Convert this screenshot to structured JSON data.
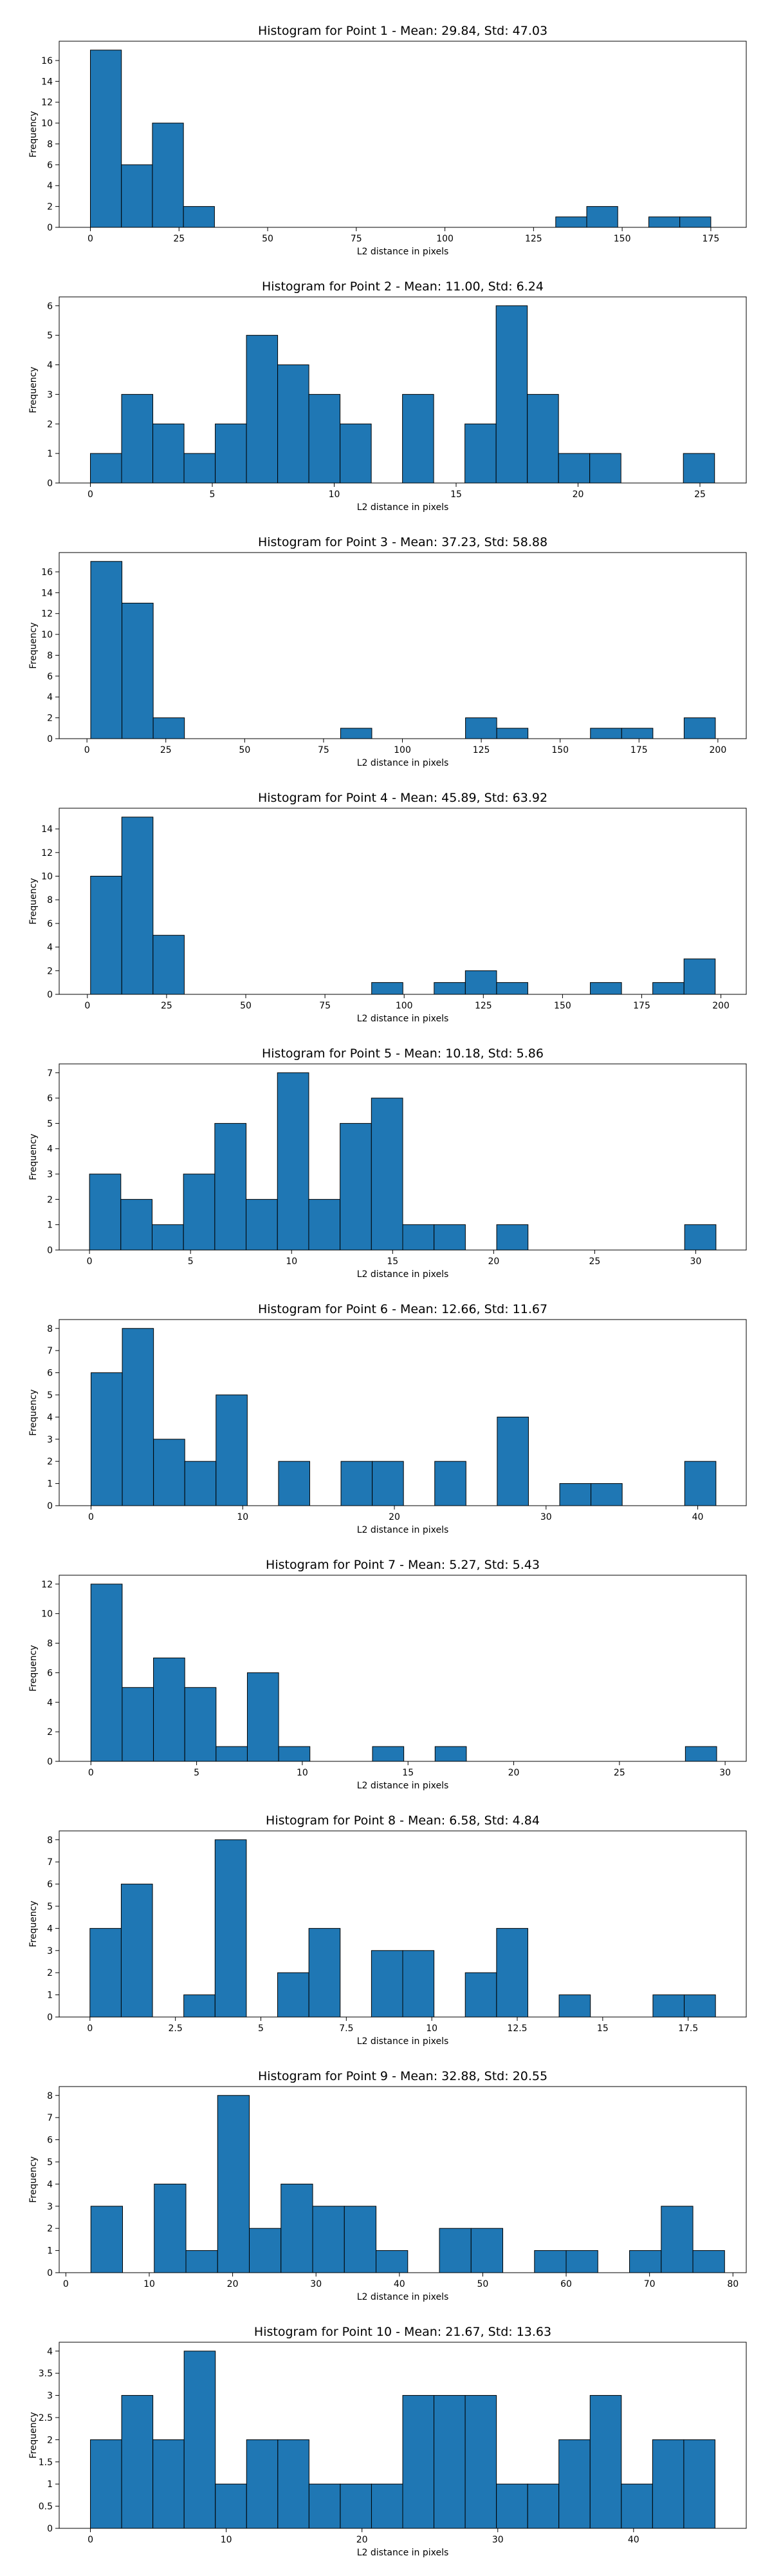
{
  "chart_data": [
    {
      "type": "bar",
      "title": "Histogram for Point 1 - Mean: 29.84, Std: 47.03",
      "xlabel": "L2 distance in pixels",
      "ylabel": "Frequency",
      "xlim": [
        -8.8,
        185
      ],
      "ylim": [
        0,
        17.85
      ],
      "xticks": [
        0,
        25,
        50,
        75,
        100,
        125,
        150,
        175
      ],
      "yticks": [
        0,
        2,
        4,
        6,
        8,
        10,
        12,
        14,
        16
      ],
      "bin_start": 0,
      "bin_width": 8.75,
      "counts": [
        17,
        6,
        10,
        2,
        0,
        0,
        0,
        0,
        0,
        0,
        0,
        0,
        0,
        0,
        0,
        1,
        2,
        0,
        1,
        1
      ]
    },
    {
      "type": "bar",
      "title": "Histogram for Point 2 - Mean: 11.00, Std: 6.24",
      "xlabel": "L2 distance in pixels",
      "ylabel": "Frequency",
      "xlim": [
        -1.28,
        26.9
      ],
      "ylim": [
        0,
        6.3
      ],
      "xticks": [
        0,
        5,
        10,
        15,
        20,
        25
      ],
      "yticks": [
        0,
        1,
        2,
        3,
        4,
        5,
        6
      ],
      "bin_start": 0,
      "bin_width": 1.28,
      "counts": [
        1,
        3,
        2,
        1,
        2,
        5,
        4,
        3,
        2,
        0,
        3,
        0,
        2,
        6,
        3,
        1,
        1,
        0,
        0,
        1
      ]
    },
    {
      "type": "bar",
      "title": "Histogram for Point 3 - Mean: 37.23, Std: 58.88",
      "xlabel": "L2 distance in pixels",
      "ylabel": "Frequency",
      "xlim": [
        -8.8,
        209
      ],
      "ylim": [
        0,
        17.85
      ],
      "xticks": [
        0,
        25,
        50,
        75,
        100,
        125,
        150,
        175,
        200
      ],
      "yticks": [
        0,
        2,
        4,
        6,
        8,
        10,
        12,
        14,
        16
      ],
      "bin_start": 1.2,
      "bin_width": 9.9,
      "counts": [
        17,
        13,
        2,
        0,
        0,
        0,
        0,
        0,
        1,
        0,
        0,
        0,
        2,
        1,
        0,
        0,
        1,
        1,
        0,
        2
      ]
    },
    {
      "type": "bar",
      "title": "Histogram for Point 4 - Mean: 45.89, Std: 63.92",
      "xlabel": "L2 distance in pixels",
      "ylabel": "Frequency",
      "xlim": [
        -8.9,
        208
      ],
      "ylim": [
        0,
        15.75
      ],
      "xticks": [
        0,
        25,
        50,
        75,
        100,
        125,
        150,
        175,
        200
      ],
      "yticks": [
        0,
        2,
        4,
        6,
        8,
        10,
        12,
        14
      ],
      "bin_start": 1.0,
      "bin_width": 9.86,
      "counts": [
        10,
        15,
        5,
        0,
        0,
        0,
        0,
        0,
        0,
        1,
        0,
        1,
        2,
        1,
        0,
        0,
        1,
        0,
        1,
        3
      ]
    },
    {
      "type": "bar",
      "title": "Histogram for Point 5 - Mean: 10.18, Std: 5.86",
      "xlabel": "L2 distance in pixels",
      "ylabel": "Frequency",
      "xlim": [
        -1.5,
        32.5
      ],
      "ylim": [
        0,
        7.35
      ],
      "xticks": [
        0,
        5,
        10,
        15,
        20,
        25,
        30
      ],
      "yticks": [
        0,
        1,
        2,
        3,
        4,
        5,
        6,
        7
      ],
      "bin_start": 0,
      "bin_width": 1.55,
      "counts": [
        3,
        2,
        1,
        3,
        5,
        2,
        7,
        2,
        5,
        6,
        1,
        1,
        0,
        1,
        0,
        0,
        0,
        0,
        0,
        1
      ]
    },
    {
      "type": "bar",
      "title": "Histogram for Point 6 - Mean: 12.66, Std: 11.67",
      "xlabel": "L2 distance in pixels",
      "ylabel": "Frequency",
      "xlim": [
        -2.1,
        43.2
      ],
      "ylim": [
        0,
        8.4
      ],
      "xticks": [
        0,
        10,
        20,
        30,
        40
      ],
      "yticks": [
        0,
        1,
        2,
        3,
        4,
        5,
        6,
        7,
        8
      ],
      "bin_start": 0,
      "bin_width": 2.06,
      "counts": [
        6,
        8,
        3,
        2,
        5,
        0,
        2,
        0,
        2,
        2,
        0,
        2,
        0,
        4,
        0,
        1,
        1,
        0,
        0,
        2
      ]
    },
    {
      "type": "bar",
      "title": "Histogram for Point 7 - Mean: 5.27, Std: 5.43",
      "xlabel": "L2 distance in pixels",
      "ylabel": "Frequency",
      "xlim": [
        -1.5,
        31.0
      ],
      "ylim": [
        0,
        12.6
      ],
      "xticks": [
        0,
        5,
        10,
        15,
        20,
        25,
        30
      ],
      "yticks": [
        0,
        2,
        4,
        6,
        8,
        10,
        12
      ],
      "bin_start": 0,
      "bin_width": 1.48,
      "counts": [
        12,
        5,
        7,
        5,
        1,
        6,
        1,
        0,
        0,
        1,
        0,
        1,
        0,
        0,
        0,
        0,
        0,
        0,
        0,
        1
      ]
    },
    {
      "type": "bar",
      "title": "Histogram for Point 8 - Mean: 6.58, Std: 4.84",
      "xlabel": "L2 distance in pixels",
      "ylabel": "Frequency",
      "xlim": [
        -0.9,
        19.2
      ],
      "ylim": [
        0,
        8.4
      ],
      "xticks": [
        0.0,
        2.5,
        5.0,
        7.5,
        10.0,
        12.5,
        15.0,
        17.5
      ],
      "yticks": [
        0,
        1,
        2,
        3,
        4,
        5,
        6,
        7,
        8
      ],
      "bin_start": 0,
      "bin_width": 0.915,
      "counts": [
        4,
        6,
        0,
        1,
        8,
        0,
        2,
        4,
        0,
        3,
        3,
        0,
        2,
        4,
        0,
        1,
        0,
        0,
        1,
        1
      ]
    },
    {
      "type": "bar",
      "title": "Histogram for Point 9 - Mean: 32.88, Std: 20.55",
      "xlabel": "L2 distance in pixels",
      "ylabel": "Frequency",
      "xlim": [
        -0.8,
        81.6
      ],
      "ylim": [
        0,
        8.4
      ],
      "xticks": [
        0,
        10,
        20,
        30,
        40,
        50,
        60,
        70,
        80
      ],
      "yticks": [
        0,
        1,
        2,
        3,
        4,
        5,
        6,
        7,
        8
      ],
      "bin_start": 3.0,
      "bin_width": 3.8,
      "counts": [
        3,
        0,
        4,
        1,
        8,
        2,
        4,
        3,
        3,
        1,
        0,
        2,
        2,
        0,
        1,
        1,
        0,
        1,
        3,
        1
      ]
    },
    {
      "type": "bar",
      "title": "Histogram for Point 10 - Mean: 21.67, Std: 13.63",
      "xlabel": "L2 distance in pixels",
      "ylabel": "Frequency",
      "xlim": [
        -2.3,
        48.3
      ],
      "ylim": [
        0,
        4.2
      ],
      "xticks": [
        0,
        10,
        20,
        30,
        40
      ],
      "yticks": [
        0.0,
        0.5,
        1.0,
        1.5,
        2.0,
        2.5,
        3.0,
        3.5,
        4.0
      ],
      "bin_start": 0,
      "bin_width": 2.3,
      "counts": [
        2,
        3,
        2,
        4,
        1,
        2,
        2,
        1,
        1,
        1,
        3,
        3,
        3,
        1,
        1,
        2,
        3,
        1,
        2,
        2
      ]
    }
  ]
}
